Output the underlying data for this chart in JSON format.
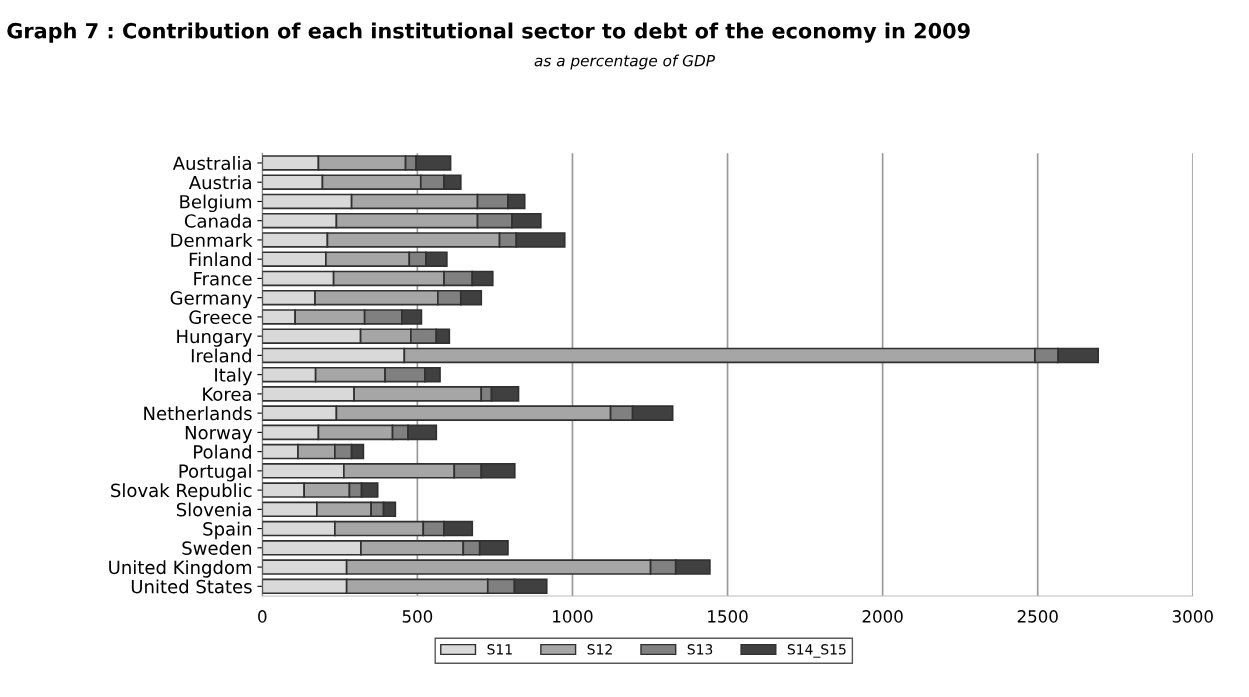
{
  "chart_data": {
    "type": "bar",
    "orientation": "horizontal",
    "stacked": true,
    "title": "Graph 7 : Contribution of each institutional sector to debt of the economy in 2009",
    "subtitle": "as a percentage of GDP",
    "categories": [
      "Australia",
      "Austria",
      "Belgium",
      "Canada",
      "Denmark",
      "Finland",
      "France",
      "Germany",
      "Greece",
      "Hungary",
      "Ireland",
      "Italy",
      "Korea",
      "Netherlands",
      "Norway",
      "Poland",
      "Portugal",
      "Slovak Republic",
      "Slovenia",
      "Spain",
      "Sweden",
      "United Kingdom",
      "United States"
    ],
    "series": [
      {
        "name": "S11",
        "color": "#d9d9d9",
        "values": [
          181,
          194,
          288,
          239,
          210,
          205,
          230,
          170,
          106,
          317,
          458,
          172,
          296,
          239,
          181,
          115,
          263,
          135,
          176,
          234,
          318,
          272,
          272
        ]
      },
      {
        "name": "S12",
        "color": "#a6a6a6",
        "values": [
          281,
          317,
          406,
          455,
          555,
          269,
          356,
          396,
          224,
          162,
          2033,
          224,
          410,
          884,
          239,
          119,
          356,
          146,
          175,
          285,
          330,
          980,
          455
        ]
      },
      {
        "name": "S13",
        "color": "#808080",
        "values": [
          34,
          75,
          98,
          111,
          54,
          54,
          91,
          74,
          120,
          82,
          75,
          128,
          33,
          71,
          50,
          54,
          87,
          39,
          40,
          67,
          53,
          81,
          86
        ]
      },
      {
        "name": "S14_S15",
        "color": "#404040",
        "values": [
          111,
          54,
          54,
          93,
          156,
          67,
          66,
          66,
          63,
          42,
          129,
          49,
          87,
          129,
          91,
          38,
          108,
          52,
          38,
          91,
          91,
          110,
          104
        ]
      }
    ],
    "xlim": [
      0,
      3000
    ],
    "xticks": [
      0,
      500,
      1000,
      1500,
      2000,
      2500,
      3000
    ],
    "grid": "x",
    "legend": "bottom"
  }
}
